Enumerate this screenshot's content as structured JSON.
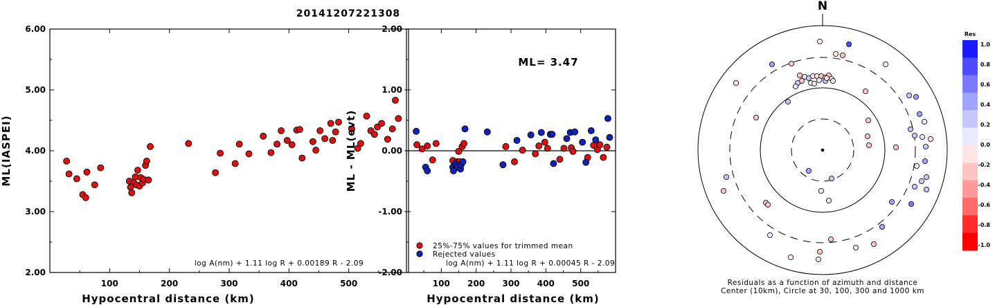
{
  "title": "20141207221308",
  "chart_data": [
    {
      "type": "scatter",
      "ylabel": "ML(IASPEI)",
      "xlabel": "Hypocentral distance (km)",
      "xlim": [
        0,
        600
      ],
      "ylim": [
        2.0,
        6.0
      ],
      "xticks": [
        "100",
        "200",
        "300",
        "400",
        "500"
      ],
      "yticks": [
        "2.00",
        "3.00",
        "4.00",
        "5.00",
        "6.00"
      ],
      "formula": "log A(nm) + 1.11 log R + 0.00189 R - 2.09",
      "series": [
        {
          "color": "#dd1111",
          "points": [
            [
              28,
              3.83
            ],
            [
              32,
              3.62
            ],
            [
              45,
              3.54
            ],
            [
              55,
              3.28
            ],
            [
              60,
              3.23
            ],
            [
              62,
              3.65
            ],
            [
              75,
              3.44
            ],
            [
              85,
              3.72
            ],
            [
              133,
              3.5
            ],
            [
              135,
              3.4
            ],
            [
              137,
              3.31
            ],
            [
              140,
              3.48
            ],
            [
              143,
              3.57
            ],
            [
              145,
              3.44
            ],
            [
              147,
              3.68
            ],
            [
              150,
              3.42
            ],
            [
              152,
              3.56
            ],
            [
              155,
              3.47
            ],
            [
              157,
              3.53
            ],
            [
              160,
              3.76
            ],
            [
              162,
              3.83
            ],
            [
              165,
              3.52
            ],
            [
              168,
              4.07
            ],
            [
              232,
              4.12
            ],
            [
              277,
              3.64
            ],
            [
              285,
              3.96
            ],
            [
              310,
              3.79
            ],
            [
              317,
              4.11
            ],
            [
              333,
              3.95
            ],
            [
              357,
              4.24
            ],
            [
              370,
              3.97
            ],
            [
              380,
              4.11
            ],
            [
              387,
              4.33
            ],
            [
              397,
              4.17
            ],
            [
              405,
              4.1
            ],
            [
              413,
              4.34
            ],
            [
              418,
              4.35
            ],
            [
              422,
              3.88
            ],
            [
              440,
              4.15
            ],
            [
              445,
              4.01
            ],
            [
              452,
              4.33
            ],
            [
              460,
              4.2
            ],
            [
              470,
              4.45
            ],
            [
              473,
              4.17
            ],
            [
              478,
              4.31
            ],
            [
              483,
              4.47
            ],
            [
              505,
              4.36
            ],
            [
              515,
              4.04
            ],
            [
              520,
              4.12
            ],
            [
              530,
              4.57
            ],
            [
              537,
              4.33
            ],
            [
              543,
              4.27
            ],
            [
              548,
              4.39
            ],
            [
              555,
              4.45
            ],
            [
              565,
              4.19
            ],
            [
              573,
              4.36
            ],
            [
              578,
              4.83
            ],
            [
              583,
              4.53
            ]
          ]
        }
      ]
    },
    {
      "type": "scatter",
      "ylabel": "ML - ML(evt)",
      "xlabel": "Hypocentral distance (km)",
      "xlim": [
        0,
        600
      ],
      "ylim": [
        -2.0,
        2.0
      ],
      "xticks": [
        "100",
        "200",
        "300",
        "400",
        "500"
      ],
      "yticks": [
        "-2.00",
        "-1.00",
        "0.00",
        "1.00",
        "2.00"
      ],
      "annotation": "ML= 3.47",
      "formula": "log A(nm) + 1.11 log R + 0.00045 R - 2.09",
      "legend": [
        {
          "label": "25%-75% values for trimmed mean",
          "color": "#dd1111"
        },
        {
          "label": "Rejected values",
          "color": "#1122bb"
        }
      ],
      "series": [
        {
          "name": "25%-75% values for trimmed mean",
          "color": "#dd1111",
          "points": [
            [
              30,
              0.1
            ],
            [
              45,
              0.03
            ],
            [
              60,
              0.08
            ],
            [
              75,
              -0.15
            ],
            [
              85,
              0.12
            ],
            [
              133,
              -0.16
            ],
            [
              137,
              -0.24
            ],
            [
              145,
              -0.18
            ],
            [
              150,
              -0.01
            ],
            [
              152,
              -0.18
            ],
            [
              160,
              0.07
            ],
            [
              165,
              0.12
            ],
            [
              285,
              0.07
            ],
            [
              310,
              -0.18
            ],
            [
              333,
              0.01
            ],
            [
              370,
              -0.05
            ],
            [
              380,
              0.08
            ],
            [
              397,
              0.14
            ],
            [
              405,
              0.04
            ],
            [
              440,
              -0.14
            ],
            [
              452,
              0.04
            ],
            [
              473,
              0.05
            ],
            [
              478,
              -0.01
            ],
            [
              520,
              -0.11
            ],
            [
              537,
              0.09
            ],
            [
              548,
              0.02
            ],
            [
              555,
              0.1
            ],
            [
              565,
              -0.11
            ],
            [
              575,
              0.06
            ]
          ]
        },
        {
          "name": "Rejected values",
          "color": "#1122bb",
          "points": [
            [
              28,
              0.32
            ],
            [
              55,
              -0.27
            ],
            [
              60,
              -0.33
            ],
            [
              133,
              -0.27
            ],
            [
              135,
              -0.33
            ],
            [
              140,
              -0.21
            ],
            [
              143,
              -0.24
            ],
            [
              147,
              -0.27
            ],
            [
              155,
              -0.3
            ],
            [
              157,
              -0.23
            ],
            [
              162,
              -0.18
            ],
            [
              168,
              0.36
            ],
            [
              232,
              0.31
            ],
            [
              277,
              -0.23
            ],
            [
              317,
              0.17
            ],
            [
              357,
              0.26
            ],
            [
              387,
              0.3
            ],
            [
              413,
              0.27
            ],
            [
              418,
              0.27
            ],
            [
              422,
              -0.21
            ],
            [
              460,
              0.2
            ],
            [
              470,
              0.3
            ],
            [
              483,
              0.31
            ],
            [
              505,
              0.14
            ],
            [
              515,
              -0.19
            ],
            [
              530,
              0.33
            ],
            [
              543,
              0.18
            ],
            [
              578,
              0.53
            ],
            [
              583,
              0.22
            ]
          ]
        }
      ]
    },
    {
      "type": "scatter",
      "title": "N",
      "caption1": "Residuals as a function of azimuth and distance",
      "caption2": "Center (10km), Circle at 30, 100, 300 and 1000 km",
      "colorbar": {
        "title": "Res",
        "labels": [
          "1.0",
          "0.8",
          "0.6",
          "0.4",
          "0.2",
          "0.0",
          "-0.2",
          "-0.4",
          "-0.6",
          "-0.8",
          "-1.0"
        ],
        "colors": [
          "#1a1aff",
          "#4d4dff",
          "#7a7aff",
          "#a2a2ff",
          "#c7c7ff",
          "#eaeaff",
          "#ffe6e6",
          "#ffc4c4",
          "#ff9a9a",
          "#ff6a6a",
          "#ff2a2a",
          "#ff0000"
        ]
      },
      "points": [
        [
          1184,
          60,
          -0.05
        ],
        [
          1207,
          78,
          -0.15
        ],
        [
          1217,
          80,
          -0.25
        ],
        [
          1226,
          64,
          0.9
        ],
        [
          1143,
          92,
          -0.2
        ],
        [
          1115,
          93,
          0.4
        ],
        [
          1063,
          120,
          -0.1
        ],
        [
          1155,
          109,
          -0.2
        ],
        [
          1162,
          111,
          0.1
        ],
        [
          1168,
          113,
          0.2
        ],
        [
          1174,
          110,
          -0.15
        ],
        [
          1180,
          110,
          -0.1
        ],
        [
          1186,
          110,
          -0.2
        ],
        [
          1192,
          112,
          -0.25
        ],
        [
          1197,
          109,
          -0.3
        ],
        [
          1201,
          114,
          -0.1
        ],
        [
          1203,
          117,
          -0.15
        ],
        [
          1183,
          116,
          0.1
        ],
        [
          1171,
          120,
          0.15
        ],
        [
          1158,
          117,
          -0.2
        ],
        [
          1152,
          120,
          0.2
        ],
        [
          1149,
          125,
          0.1
        ],
        [
          1176,
          121,
          -0.1
        ],
        [
          1192,
          117,
          0.2
        ],
        [
          1194,
          113,
          -0.15
        ],
        [
          1279,
          93,
          0.05
        ],
        [
          1250,
          132,
          -0.3
        ],
        [
          1313,
          138,
          0.3
        ],
        [
          1323,
          140,
          0.5
        ],
        [
          1138,
          147,
          0.3
        ],
        [
          1092,
          170,
          -0.3
        ],
        [
          1254,
          174,
          -0.3
        ],
        [
          1328,
          165,
          0.4
        ],
        [
          1335,
          176,
          0.1
        ],
        [
          1315,
          187,
          0.2
        ],
        [
          1321,
          196,
          0.3
        ],
        [
          1332,
          198,
          0.05
        ],
        [
          1344,
          201,
          -0.05
        ],
        [
          1253,
          197,
          -0.3
        ],
        [
          1255,
          210,
          -0.2
        ],
        [
          1294,
          213,
          -0.3
        ],
        [
          1337,
          212,
          0.2
        ],
        [
          1324,
          240,
          0.05
        ],
        [
          1336,
          233,
          0.4
        ],
        [
          1338,
          256,
          0.35
        ],
        [
          1331,
          262,
          0.25
        ],
        [
          1321,
          270,
          0.2
        ],
        [
          1338,
          274,
          0.2
        ],
        [
          1316,
          295,
          0.6
        ],
        [
          1288,
          292,
          0.5
        ],
        [
          1049,
          256,
          0.3
        ],
        [
          1045,
          276,
          -0.3
        ],
        [
          1106,
          293,
          -0.35
        ],
        [
          1109,
          296,
          -0.2
        ],
        [
          1168,
          247,
          0.5
        ],
        [
          1186,
          276,
          0.05
        ],
        [
          1197,
          290,
          0.1
        ],
        [
          1201,
          258,
          0.2
        ],
        [
          1274,
          328,
          0.5
        ],
        [
          1262,
          353,
          -0.2
        ],
        [
          1236,
          358,
          -0.05
        ],
        [
          1200,
          346,
          -0.3
        ],
        [
          1184,
          364,
          -0.25
        ],
        [
          1182,
          375,
          0.1
        ],
        [
          1112,
          340,
          0.05
        ],
        [
          1142,
          372,
          -0.1
        ]
      ]
    }
  ]
}
